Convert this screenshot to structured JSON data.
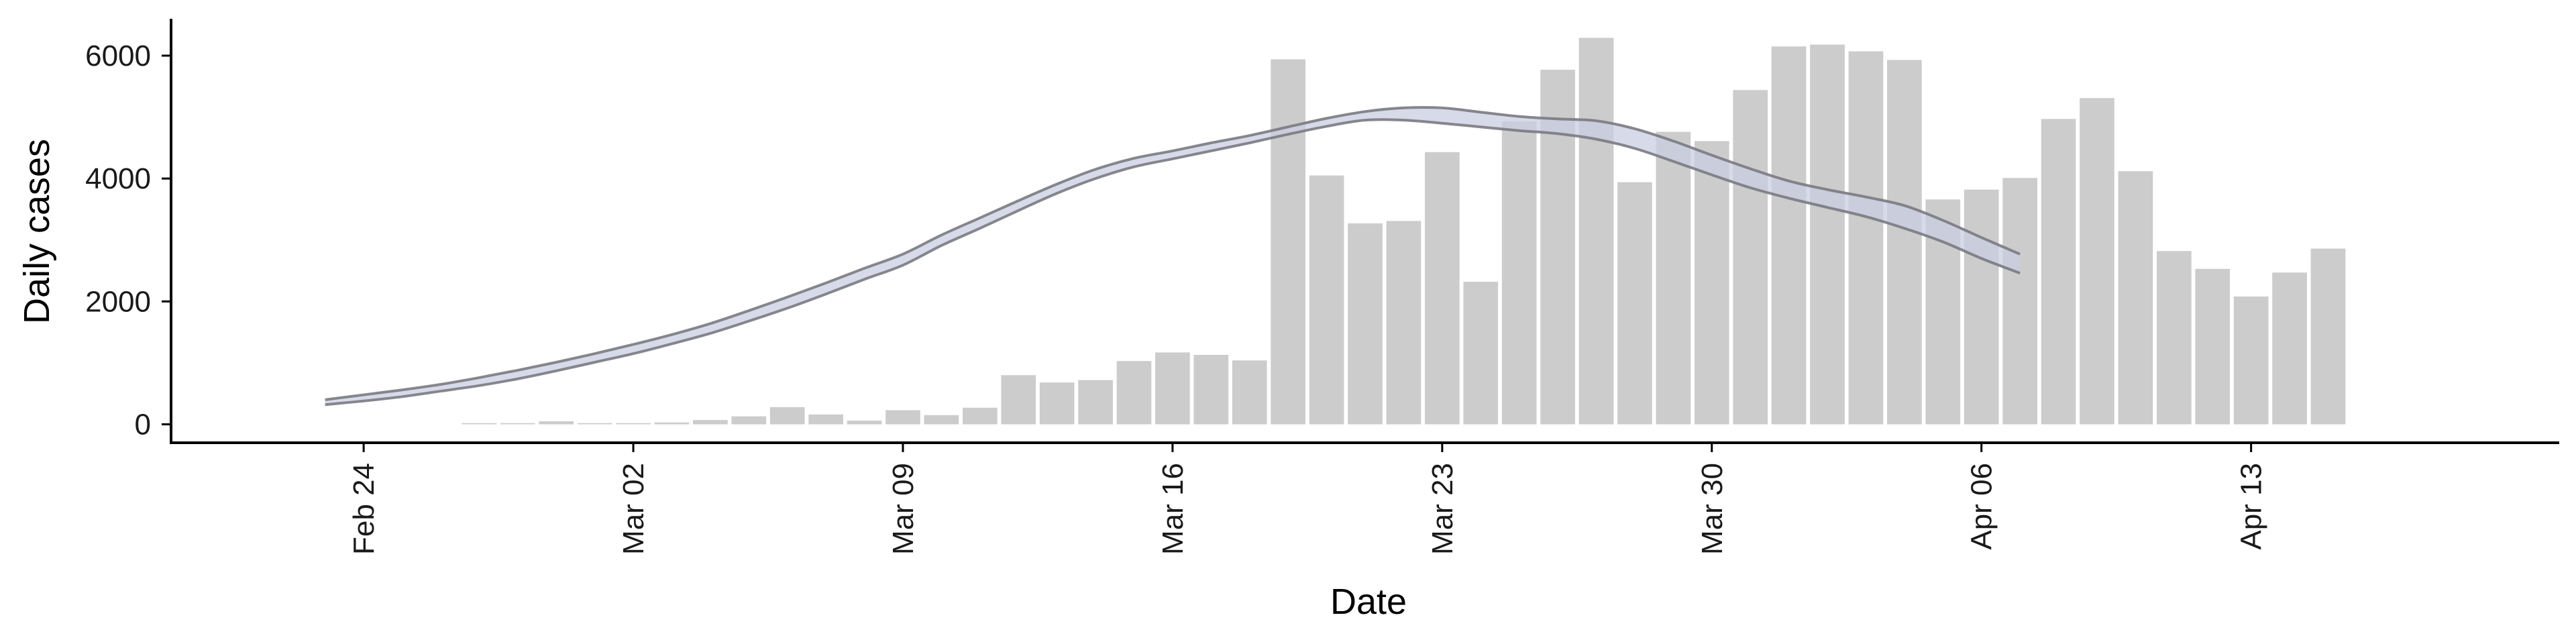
{
  "chart_data": {
    "type": "bar",
    "title": "",
    "xlabel": "Date",
    "ylabel": "Daily cases",
    "ylim": [
      -300,
      6600
    ],
    "yticks": [
      0,
      2000,
      4000,
      6000
    ],
    "ytick_labels": [
      "0",
      "2000",
      "4000",
      "6000"
    ],
    "xlim": [
      "2020-02-19",
      "2020-04-21"
    ],
    "xticks": [
      "2020-02-24",
      "2020-03-02",
      "2020-03-09",
      "2020-03-16",
      "2020-03-23",
      "2020-03-30",
      "2020-04-06",
      "2020-04-13"
    ],
    "xtick_labels": [
      "Feb 24",
      "Mar 02",
      "Mar 09",
      "Mar 16",
      "Mar 23",
      "Mar 30",
      "Apr 06",
      "Apr 13"
    ],
    "grid": false,
    "legend": "none",
    "colors": {
      "bars": "#cccccc",
      "band": "#c9cde0",
      "band_edge": "#7a7a82",
      "axis": "#000000"
    },
    "bars": {
      "dates": [
        "2020-02-27",
        "2020-02-28",
        "2020-02-29",
        "2020-03-01",
        "2020-03-02",
        "2020-03-03",
        "2020-03-04",
        "2020-03-05",
        "2020-03-06",
        "2020-03-07",
        "2020-03-08",
        "2020-03-09",
        "2020-03-10",
        "2020-03-11",
        "2020-03-12",
        "2020-03-13",
        "2020-03-14",
        "2020-03-15",
        "2020-03-16",
        "2020-03-17",
        "2020-03-18",
        "2020-03-19",
        "2020-03-20",
        "2020-03-21",
        "2020-03-22",
        "2020-03-23",
        "2020-03-24",
        "2020-03-25",
        "2020-03-26",
        "2020-03-27",
        "2020-03-28",
        "2020-03-29",
        "2020-03-30",
        "2020-03-31",
        "2020-04-01",
        "2020-04-02",
        "2020-04-03",
        "2020-04-04",
        "2020-04-05",
        "2020-04-06",
        "2020-04-07",
        "2020-04-08",
        "2020-04-09",
        "2020-04-10",
        "2020-04-11",
        "2020-04-12",
        "2020-04-13",
        "2020-04-14",
        "2020-04-15",
        "2020-04-16",
        "2020-04-17"
      ],
      "values": [
        20,
        20,
        50,
        20,
        20,
        30,
        70,
        130,
        280,
        160,
        60,
        230,
        150,
        270,
        800,
        680,
        720,
        1030,
        1170,
        1130,
        1040,
        5940,
        4050,
        3270,
        3310,
        4430,
        2320,
        4930,
        5770,
        6290,
        3940,
        4760,
        4610,
        5440,
        6150,
        6180,
        6070,
        5930,
        3660,
        3820,
        4010,
        4970,
        5310,
        4120,
        2820,
        2530,
        2080,
        2470,
        2860,
        0,
        0
      ]
    },
    "band": {
      "dates": [
        "2020-02-23",
        "2020-02-24",
        "2020-02-25",
        "2020-02-26",
        "2020-02-27",
        "2020-02-28",
        "2020-02-29",
        "2020-03-01",
        "2020-03-02",
        "2020-03-03",
        "2020-03-04",
        "2020-03-05",
        "2020-03-06",
        "2020-03-07",
        "2020-03-08",
        "2020-03-09",
        "2020-03-10",
        "2020-03-11",
        "2020-03-12",
        "2020-03-13",
        "2020-03-14",
        "2020-03-15",
        "2020-03-16",
        "2020-03-17",
        "2020-03-18",
        "2020-03-19",
        "2020-03-20",
        "2020-03-21",
        "2020-03-22",
        "2020-03-23",
        "2020-03-24",
        "2020-03-25",
        "2020-03-26",
        "2020-03-27",
        "2020-03-28",
        "2020-03-29",
        "2020-03-30",
        "2020-03-31",
        "2020-04-01",
        "2020-04-02",
        "2020-04-03",
        "2020-04-04",
        "2020-04-05",
        "2020-04-06",
        "2020-04-07"
      ],
      "upper": [
        400,
        480,
        560,
        650,
        760,
        880,
        1010,
        1150,
        1300,
        1460,
        1640,
        1850,
        2070,
        2300,
        2540,
        2770,
        3080,
        3360,
        3640,
        3910,
        4150,
        4330,
        4450,
        4580,
        4700,
        4840,
        4980,
        5090,
        5150,
        5150,
        5080,
        5010,
        4970,
        4940,
        4810,
        4610,
        4380,
        4160,
        3960,
        3820,
        3700,
        3560,
        3320,
        3040,
        2770
      ],
      "lower": [
        320,
        380,
        450,
        540,
        630,
        740,
        870,
        1010,
        1150,
        1310,
        1480,
        1680,
        1890,
        2120,
        2360,
        2590,
        2910,
        3190,
        3480,
        3760,
        4000,
        4190,
        4320,
        4450,
        4580,
        4720,
        4850,
        4950,
        4950,
        4900,
        4840,
        4780,
        4730,
        4640,
        4490,
        4280,
        4060,
        3850,
        3680,
        3530,
        3380,
        3190,
        2970,
        2700,
        2460
      ]
    }
  }
}
